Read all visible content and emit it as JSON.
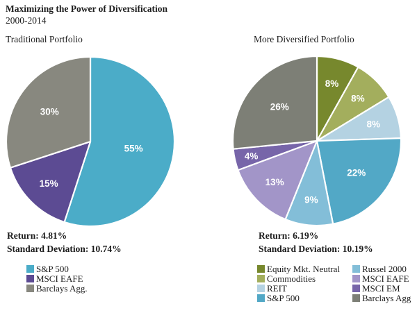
{
  "header": {
    "title": "Maximizing the Power of Diversification",
    "subtitle": "2000-2014"
  },
  "chart_data": [
    {
      "type": "pie",
      "title": "Traditional Portfolio",
      "labels": [
        "S&P 500",
        "MSCI EAFE",
        "Barclays Agg."
      ],
      "values": [
        55,
        15,
        30
      ],
      "data_labels": [
        "55%",
        "15%",
        "30%"
      ],
      "colors": [
        "#4BACC8",
        "#5C4B93",
        "#88887F"
      ],
      "return_text": "Return: 4.81%",
      "std_text": "Standard Deviation: 10.74%",
      "legend_cols": 1,
      "start_angle_deg": 0,
      "direction": "clockwise",
      "legend_position": "bottom-left"
    },
    {
      "type": "pie",
      "title": "More Diversified Portfolio",
      "labels": [
        "Equity Mkt. Neutral",
        "Commodities",
        "REIT",
        "S&P 500",
        "Russel 2000",
        "MSCI EAFE",
        "MSCI EM",
        "Barclays Agg"
      ],
      "values": [
        8,
        8,
        8,
        22,
        9,
        13,
        4,
        26
      ],
      "data_labels": [
        "8%",
        "8%",
        "8%",
        "22%",
        "9%",
        "13%",
        "4%",
        "26%"
      ],
      "colors": [
        "#77882D",
        "#A3AE5D",
        "#B4D2E2",
        "#52A8C6",
        "#83BED8",
        "#A295C8",
        "#7765A9",
        "#7D7F76"
      ],
      "return_text": "Return: 6.19%",
      "std_text": "Standard Deviation: 10.19%",
      "legend_cols": 2,
      "start_angle_deg": 0,
      "direction": "clockwise",
      "legend_position": "bottom-right"
    }
  ]
}
